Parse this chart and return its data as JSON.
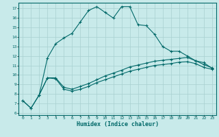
{
  "xlabel": "Humidex (Indice chaleur)",
  "bg_color": "#c8eaea",
  "grid_color": "#a8d0d0",
  "line_color": "#006868",
  "xlim": [
    -0.5,
    23.5
  ],
  "ylim": [
    5.8,
    17.6
  ],
  "xticks": [
    0,
    1,
    2,
    3,
    4,
    5,
    6,
    7,
    8,
    9,
    10,
    11,
    12,
    13,
    14,
    15,
    16,
    17,
    18,
    19,
    20,
    21,
    22,
    23
  ],
  "yticks": [
    6,
    7,
    8,
    9,
    10,
    11,
    12,
    13,
    14,
    15,
    16,
    17
  ],
  "curve1_x": [
    0,
    1,
    2,
    3,
    4,
    5,
    6,
    7,
    8,
    9,
    10,
    11,
    12,
    13,
    14,
    15,
    16,
    17,
    18,
    19,
    20,
    21,
    22,
    23
  ],
  "curve1_y": [
    7.3,
    6.5,
    7.9,
    9.7,
    9.6,
    8.5,
    8.3,
    8.5,
    8.8,
    9.2,
    9.5,
    9.8,
    10.1,
    10.4,
    10.6,
    10.8,
    11.0,
    11.1,
    11.2,
    11.35,
    11.4,
    11.2,
    10.8,
    10.6
  ],
  "curve2_x": [
    0,
    1,
    2,
    3,
    4,
    5,
    6,
    7,
    8,
    9,
    10,
    11,
    12,
    13,
    14,
    15,
    16,
    17,
    18,
    19,
    20,
    21,
    22,
    23
  ],
  "curve2_y": [
    7.3,
    6.5,
    7.9,
    9.7,
    9.7,
    8.7,
    8.5,
    8.8,
    9.1,
    9.5,
    9.9,
    10.2,
    10.5,
    10.85,
    11.05,
    11.25,
    11.45,
    11.55,
    11.65,
    11.75,
    11.85,
    11.5,
    11.1,
    10.75
  ],
  "curve3_x": [
    2,
    3,
    4,
    5,
    6,
    7,
    8,
    9,
    10,
    11,
    12,
    13,
    14,
    15,
    16,
    17,
    18,
    19,
    20,
    21,
    22,
    23
  ],
  "curve3_y": [
    7.9,
    11.8,
    13.3,
    13.9,
    14.4,
    15.6,
    16.8,
    17.2,
    16.6,
    16.0,
    17.2,
    17.2,
    15.3,
    15.2,
    14.3,
    13.0,
    12.5,
    12.5,
    12.0,
    11.5,
    11.3,
    10.7
  ]
}
